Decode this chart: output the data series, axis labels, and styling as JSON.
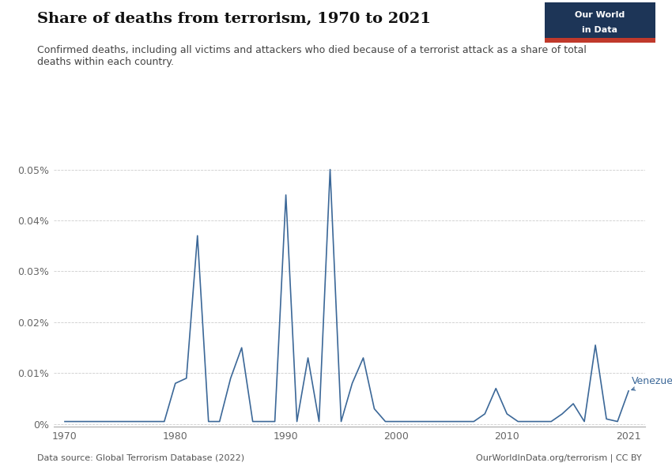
{
  "title": "Share of deaths from terrorism, 1970 to 2021",
  "subtitle": "Confirmed deaths, including all victims and attackers who died because of a terrorist attack as a share of total\ndeaths within each country.",
  "datasource": "Data source: Global Terrorism Database (2022)",
  "credit": "OurWorldInData.org/terrorism | CC BY",
  "country_label": "Venezuela",
  "line_color": "#3c6898",
  "years": [
    1970,
    1971,
    1972,
    1973,
    1974,
    1975,
    1976,
    1977,
    1978,
    1979,
    1980,
    1981,
    1982,
    1983,
    1984,
    1985,
    1986,
    1987,
    1988,
    1989,
    1990,
    1991,
    1992,
    1993,
    1994,
    1995,
    1996,
    1997,
    1998,
    1999,
    2000,
    2001,
    2002,
    2003,
    2004,
    2005,
    2006,
    2007,
    2008,
    2009,
    2010,
    2011,
    2012,
    2013,
    2014,
    2015,
    2016,
    2017,
    2018,
    2019,
    2020,
    2021
  ],
  "values": [
    5e-06,
    5e-06,
    5e-06,
    5e-06,
    5e-06,
    5e-06,
    5e-06,
    5e-06,
    5e-06,
    5e-06,
    8e-05,
    9e-05,
    0.00037,
    5e-06,
    5e-06,
    9e-05,
    0.00015,
    5e-06,
    5e-06,
    5e-06,
    0.00045,
    5e-06,
    0.00013,
    5e-06,
    0.0005,
    5e-06,
    8e-05,
    0.00013,
    3e-05,
    5e-06,
    5e-06,
    5e-06,
    5e-06,
    5e-06,
    5e-06,
    5e-06,
    5e-06,
    5e-06,
    2e-05,
    7e-05,
    2e-05,
    5e-06,
    5e-06,
    5e-06,
    5e-06,
    2e-05,
    4e-05,
    5e-06,
    0.000155,
    1e-05,
    5e-06,
    6.5e-05
  ],
  "ytick_vals": [
    0,
    0.0001,
    0.0002,
    0.0003,
    0.0004,
    0.0005
  ],
  "ytick_labels": [
    "0%",
    "0.01%",
    "0.02%",
    "0.03%",
    "0.04%",
    "0.05%"
  ],
  "xtick_vals": [
    1970,
    1980,
    1990,
    2000,
    2010,
    2021
  ],
  "xtick_labels": [
    "1970",
    "1980",
    "1990",
    "2000",
    "2010",
    "2021"
  ],
  "xlim": [
    1969,
    2022.5
  ],
  "ylim": [
    -5e-06,
    0.000535
  ],
  "background_color": "#ffffff",
  "owid_bg_color": "#1d3557",
  "owid_red_color": "#c0392b",
  "grid_color": "#cccccc",
  "text_color": "#333333",
  "axis_color": "#aaaaaa"
}
